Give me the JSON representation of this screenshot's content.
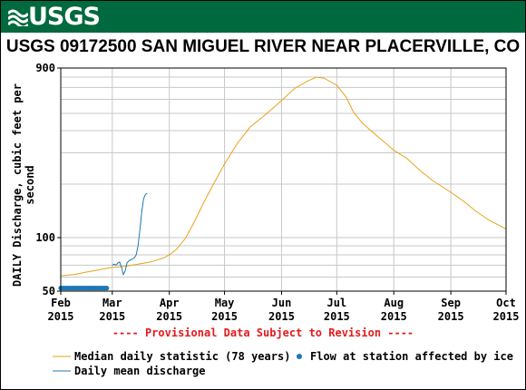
{
  "banner": {
    "logo_text": "USGS",
    "color": "#00693e"
  },
  "title": "USGS 09172500 SAN MIGUEL RIVER NEAR PLACERVILLE, CO",
  "provisional_note": "---- Provisional Data Subject to Revision ----",
  "chart_data": {
    "type": "line",
    "title": "USGS 09172500 SAN MIGUEL RIVER NEAR PLACERVILLE, CO",
    "ylabel": "DAILY Discharge, cubic feet per second",
    "xlabel": "",
    "yscale": "log",
    "ylim": [
      50,
      900
    ],
    "y_ticks": [
      "900",
      "100",
      "50"
    ],
    "xlim": [
      "2015-02-01",
      "2015-10-01"
    ],
    "x_ticks": [
      {
        "month": "Feb",
        "year": "2015",
        "date": "2015-02-01"
      },
      {
        "month": "Mar",
        "year": "2015",
        "date": "2015-03-01"
      },
      {
        "month": "Apr",
        "year": "2015",
        "date": "2015-04-01"
      },
      {
        "month": "May",
        "year": "2015",
        "date": "2015-05-01"
      },
      {
        "month": "Jun",
        "year": "2015",
        "date": "2015-06-01"
      },
      {
        "month": "Jul",
        "year": "2015",
        "date": "2015-07-01"
      },
      {
        "month": "Aug",
        "year": "2015",
        "date": "2015-08-01"
      },
      {
        "month": "Sep",
        "year": "2015",
        "date": "2015-09-01"
      },
      {
        "month": "Oct",
        "year": "2015",
        "date": "2015-10-01"
      }
    ],
    "grid": true,
    "legend_position": "bottom",
    "series": [
      {
        "name": "Median daily statistic (78 years)",
        "color": "#e8a317",
        "points": [
          [
            "2015-02-01",
            61
          ],
          [
            "2015-02-08",
            62
          ],
          [
            "2015-02-15",
            64
          ],
          [
            "2015-02-22",
            66
          ],
          [
            "2015-03-01",
            68
          ],
          [
            "2015-03-08",
            69
          ],
          [
            "2015-03-15",
            71
          ],
          [
            "2015-03-22",
            73
          ],
          [
            "2015-03-29",
            77
          ],
          [
            "2015-04-01",
            80
          ],
          [
            "2015-04-05",
            86
          ],
          [
            "2015-04-10",
            100
          ],
          [
            "2015-04-15",
            125
          ],
          [
            "2015-04-20",
            160
          ],
          [
            "2015-04-25",
            200
          ],
          [
            "2015-05-01",
            260
          ],
          [
            "2015-05-08",
            340
          ],
          [
            "2015-05-15",
            420
          ],
          [
            "2015-05-22",
            480
          ],
          [
            "2015-06-01",
            590
          ],
          [
            "2015-06-08",
            690
          ],
          [
            "2015-06-15",
            760
          ],
          [
            "2015-06-20",
            800
          ],
          [
            "2015-06-24",
            790
          ],
          [
            "2015-07-01",
            720
          ],
          [
            "2015-07-06",
            620
          ],
          [
            "2015-07-10",
            510
          ],
          [
            "2015-07-15",
            440
          ],
          [
            "2015-07-22",
            380
          ],
          [
            "2015-07-29",
            330
          ],
          [
            "2015-08-01",
            310
          ],
          [
            "2015-08-08",
            280
          ],
          [
            "2015-08-15",
            240
          ],
          [
            "2015-08-22",
            210
          ],
          [
            "2015-09-01",
            180
          ],
          [
            "2015-09-08",
            160
          ],
          [
            "2015-09-15",
            140
          ],
          [
            "2015-09-22",
            125
          ],
          [
            "2015-10-01",
            112
          ]
        ]
      },
      {
        "name": "Daily mean discharge",
        "color": "#1f77b4",
        "points": [
          [
            "2015-03-01",
            70
          ],
          [
            "2015-03-02",
            71
          ],
          [
            "2015-03-03",
            70
          ],
          [
            "2015-03-04",
            72
          ],
          [
            "2015-03-05",
            73
          ],
          [
            "2015-03-06",
            68
          ],
          [
            "2015-03-07",
            62
          ],
          [
            "2015-03-08",
            65
          ],
          [
            "2015-03-09",
            72
          ],
          [
            "2015-03-10",
            74
          ],
          [
            "2015-03-11",
            75
          ],
          [
            "2015-03-12",
            76
          ],
          [
            "2015-03-13",
            77
          ],
          [
            "2015-03-14",
            80
          ],
          [
            "2015-03-15",
            90
          ],
          [
            "2015-03-16",
            110
          ],
          [
            "2015-03-17",
            140
          ],
          [
            "2015-03-18",
            165
          ],
          [
            "2015-03-19",
            175
          ],
          [
            "2015-03-20",
            178
          ]
        ]
      }
    ],
    "ice_markers": {
      "name": "Flow at station affected by ice",
      "color": "#1f77b4",
      "start": "2015-02-01",
      "end": "2015-02-26",
      "value": 52
    }
  },
  "legend": {
    "median_label": "Median daily statistic (78 years)",
    "ice_label": "Flow at station affected by ice",
    "daily_label": "Daily mean discharge"
  }
}
